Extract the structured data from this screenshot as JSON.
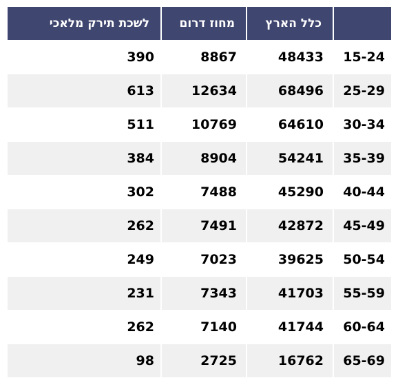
{
  "table": {
    "headers": [
      "",
      "כלל הארץ",
      "מחוז דרום",
      "לשכת תירק מלאכי"
    ],
    "rows": [
      [
        "15-24",
        "48433",
        "8867",
        "390"
      ],
      [
        "25-29",
        "68496",
        "12634",
        "613"
      ],
      [
        "30-34",
        "64610",
        "10769",
        "511"
      ],
      [
        "35-39",
        "54241",
        "8904",
        "384"
      ],
      [
        "40-44",
        "45290",
        "7488",
        "302"
      ],
      [
        "45-49",
        "42872",
        "7491",
        "262"
      ],
      [
        "50-54",
        "39625",
        "7023",
        "249"
      ],
      [
        "55-59",
        "41703",
        "7343",
        "231"
      ],
      [
        "60-64",
        "41744",
        "7140",
        "262"
      ],
      [
        "65-69",
        "16762",
        "2725",
        "98"
      ]
    ]
  },
  "colors": {
    "header_bg": "#3f466f",
    "header_text": "#ffffff",
    "row_alt_bg": "#f0f0f0",
    "row_bg": "#ffffff"
  }
}
